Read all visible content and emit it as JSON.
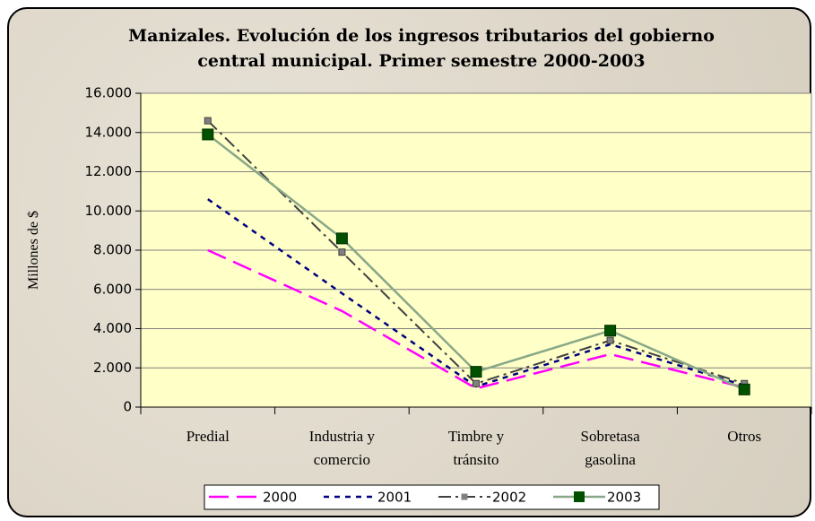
{
  "chart_data": {
    "type": "line",
    "title": "Manizales. Evolución de los ingresos tributarios del gobierno central municipal. Primer semestre 2000-2003",
    "y_label": "Millones de $",
    "categories": [
      "Predial",
      "Industria y comercio",
      "Timbre y tránsito",
      "Sobretasa gasolina",
      "Otros"
    ],
    "series": [
      {
        "name": "2000",
        "color": "#ff00ff",
        "values": [
          8000,
          4900,
          950,
          2700,
          1000
        ]
      },
      {
        "name": "2001",
        "color": "#000080",
        "values": [
          10600,
          5800,
          1050,
          3200,
          1100
        ]
      },
      {
        "name": "2002",
        "color": "#404040",
        "marker_color": "#808080",
        "values": [
          14600,
          7900,
          1200,
          3400,
          1200
        ]
      },
      {
        "name": "2003",
        "color": "#88a888",
        "marker_color": "#005000",
        "values": [
          13900,
          8600,
          1800,
          3900,
          900
        ]
      }
    ],
    "ylim": [
      0,
      16000
    ],
    "yticks": [
      0,
      {
        "value": 2000,
        "label": "2.000"
      },
      {
        "value": 4000,
        "label": "4.000"
      },
      {
        "value": 6000,
        "label": "6.000"
      },
      {
        "value": 8000,
        "label": "8.000"
      },
      {
        "value": 10000,
        "label": "10.000"
      },
      {
        "value": 12000,
        "label": "12.000"
      },
      {
        "value": 14000,
        "label": "14.000"
      },
      {
        "value": 16000,
        "label": "16.000"
      }
    ],
    "grid": true,
    "legend": "bottom"
  }
}
